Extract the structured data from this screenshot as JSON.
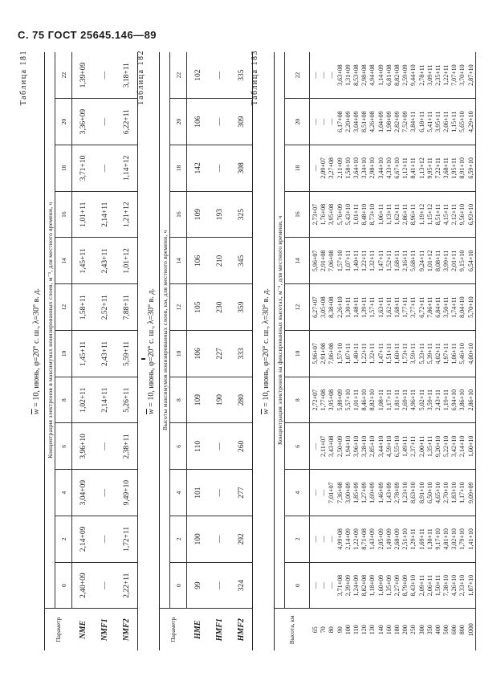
{
  "page_header": "С. 75 ГОСТ 25645.146—89",
  "tables": [
    {
      "label": "Таблица 181",
      "title_var": "w",
      "title": " = 10, июнь, φ=20° с. ш., λ=30° в. д.",
      "first_col_header": "Параметр",
      "subheader": "Концентрация электронов в максимумах ионизированных слоев, м⁻³, для местного времени, ч",
      "hours": [
        "0",
        "2",
        "4",
        "6",
        "8",
        "10",
        "12",
        "14",
        "16",
        "18",
        "20",
        "22"
      ],
      "rows": [
        {
          "label": "NME",
          "values": [
            "2,40+09",
            "2,14+09",
            "3,04+09",
            "3,96+10",
            "1,02+11",
            "1,45+11",
            "1,58+11",
            "1,45+11",
            "1,01+11",
            "3,71+10",
            "3,36+09",
            "1,39+09"
          ]
        },
        {
          "label": "NMF1",
          "values": [
            "—",
            "—",
            "—",
            "—",
            "2,14+11",
            "2,43+11",
            "2,52+11",
            "2,43+11",
            "2,14+11",
            "—",
            "—",
            "—"
          ]
        },
        {
          "label": "NMF2",
          "values": [
            "2,22+11",
            "1,72+11",
            "9,49+10",
            "2,38+11",
            "5,26+11",
            "5,59+11",
            "7,88+11",
            "1,01+12",
            "1,21+12",
            "1,14+12",
            "6,22+11",
            "3,18+11"
          ]
        }
      ]
    },
    {
      "label": "Таблица 182",
      "title_var": "w",
      "title": " = 10, июнь, φ=20° с. ш., λ=30° в. д.",
      "first_col_header": "Параметр",
      "subheader": "Высоты максимумов ионизированных слоев, км, для местного времени, ч",
      "hours": [
        "0",
        "2",
        "4",
        "6",
        "8",
        "10",
        "12",
        "14",
        "16",
        "18",
        "20",
        "22"
      ],
      "rows": [
        {
          "label": "HME",
          "values": [
            "99",
            "100",
            "101",
            "110",
            "109",
            "106",
            "105",
            "106",
            "109",
            "142",
            "106",
            "102"
          ]
        },
        {
          "label": "HMF1",
          "values": [
            "—",
            "—",
            "—",
            "—",
            "190",
            "227",
            "230",
            "210",
            "193",
            "—",
            "—",
            "—"
          ]
        },
        {
          "label": "HMF2",
          "values": [
            "324",
            "292",
            "277",
            "260",
            "280",
            "333",
            "359",
            "345",
            "325",
            "308",
            "309",
            "335"
          ]
        }
      ]
    },
    {
      "label": "Таблица 183",
      "title_var": "w",
      "title": " = 10, июнь, φ=20° с. ш., λ=30° в. д.",
      "first_col_header": "Высота, км",
      "subheader": "Концентрация электронов на фиксированных высотах, м⁻³, для местного времени, ч",
      "hours": [
        "0",
        "2",
        "4",
        "6",
        "8",
        "10",
        "12",
        "14",
        "16",
        "18",
        "20",
        "22"
      ],
      "rows": [
        {
          "label": "65",
          "values": [
            "—",
            "—",
            "—",
            "—",
            "2,72+07",
            "5,96+07",
            "6,27+07",
            "5,96+07",
            "2,73+07",
            "—",
            "—",
            "—"
          ]
        },
        {
          "label": "70",
          "values": [
            "—",
            "—",
            "—",
            "2,11+07",
            "1,77+08",
            "2,91+08",
            "3,05+08",
            "2,91+08",
            "1,76+08",
            "2,09+07",
            "—",
            "—"
          ]
        },
        {
          "label": "80",
          "values": [
            "—",
            "—",
            "7,01+07",
            "3,43+08",
            "3,95+08",
            "7,06+08",
            "8,38+08",
            "7,06+08",
            "3,95+08",
            "3,27+08",
            "—",
            "—"
          ]
        },
        {
          "label": "90",
          "values": [
            "3,71+08",
            "4,99+08",
            "7,36+08",
            "2,50+09",
            "5,89+09",
            "1,57+10",
            "2,26+10",
            "1,57+10",
            "5,76+09",
            "2,11+09",
            "6,17+08",
            "3,63+08"
          ]
        },
        {
          "label": "100",
          "values": [
            "2,39+09",
            "2,14+09",
            "3,00+09",
            "1,94+10",
            "5,57+10",
            "1,07+11",
            "1,30+11",
            "1,07+11",
            "5,43+10",
            "1,58+10",
            "2,20+09",
            "1,31+09"
          ]
        },
        {
          "label": "110",
          "values": [
            "1,24+09",
            "1,22+09",
            "1,85+09",
            "3,96+10",
            "1,01+11",
            "1,40+11",
            "1,48+11",
            "1,40+11",
            "1,01+11",
            "3,64+10",
            "3,04+09",
            "8,53+08"
          ]
        },
        {
          "label": "120",
          "values": [
            "8,82+08",
            "8,71+08",
            "1,27+09",
            "3,28+10",
            "8,46+10",
            "1,22+11",
            "1,39+11",
            "1,22+11",
            "8,48+10",
            "3,34+10",
            "8,51+08",
            "2,98+08"
          ]
        },
        {
          "label": "130",
          "values": [
            "1,18+09",
            "1,43+09",
            "1,69+09",
            "2,85+10",
            "8,82+10",
            "1,32+11",
            "1,57+11",
            "1,32+11",
            "8,73+10",
            "2,98+10",
            "4,26+08",
            "4,94+08"
          ]
        },
        {
          "label": "140",
          "values": [
            "1,60+09",
            "2,05+09",
            "1,46+09",
            "3,44+10",
            "1,08+11",
            "1,47+11",
            "1,63+11",
            "1,47+11",
            "1,06+11",
            "3,44+10",
            "1,04+09",
            "1,14+09"
          ]
        },
        {
          "label": "160",
          "values": [
            "1,35+09",
            "1,49+09",
            "1,43+09",
            "4,59+10",
            "1,17+11",
            "1,51+11",
            "1,62+11",
            "1,52+11",
            "1,13+11",
            "4,33+10",
            "1,98+09",
            "6,81+08"
          ]
        },
        {
          "label": "180",
          "values": [
            "2,27+09",
            "2,68+09",
            "2,78+09",
            "6,55+10",
            "1,81+11",
            "1,60+11",
            "1,68+11",
            "1,68+11",
            "1,62+11",
            "6,67+10",
            "2,82+09",
            "8,82+08"
          ]
        },
        {
          "label": "200",
          "values": [
            "8,79+09",
            "2,51+10",
            "1,23+10",
            "1,49+11",
            "2,69+11",
            "1,73+11",
            "1,77+11",
            "2,16+11",
            "2,86+11",
            "1,12+11",
            "7,52+09",
            "2,59+09"
          ]
        },
        {
          "label": "250",
          "values": [
            "8,43+10",
            "1,29+11",
            "8,63+10",
            "2,37+11",
            "4,96+11",
            "3,59+11",
            "3,77+11",
            "5,68+11",
            "8,96+11",
            "8,41+11",
            "3,84+11",
            "9,44+10"
          ]
        },
        {
          "label": "300",
          "values": [
            "2,09+11",
            "1,69+11",
            "8,91+10",
            "2,00+11",
            "5,02+11",
            "5,33+11",
            "6,72+11",
            "9,24+11",
            "1,19+12",
            "1,13+12",
            "6,18+11",
            "2,78+11"
          ]
        },
        {
          "label": "350",
          "values": [
            "2,06+11",
            "1,30+11",
            "6,50+10",
            "1,35+11",
            "3,59+11",
            "5,39+11",
            "7,86+11",
            "1,01+12",
            "1,15+12",
            "9,95+11",
            "5,41+11",
            "3,09+11"
          ]
        },
        {
          "label": "400",
          "values": [
            "1,50+11",
            "9,17+10",
            "4,65+10",
            "9,20+10",
            "2,43+11",
            "4,02+11",
            "6,84+11",
            "8,08+11",
            "8,51+11",
            "7,22+11",
            "3,95+11",
            "2,35+11"
          ]
        },
        {
          "label": "500",
          "values": [
            "7,38+10",
            "4,81+10",
            "2,70+10",
            "5,22+10",
            "1,19+11",
            "1,97+11",
            "3,50+11",
            "3,99+11",
            "4,15+11",
            "3,68+11",
            "2,06+11",
            "1,22+11"
          ]
        },
        {
          "label": "600",
          "values": [
            "4,26+10",
            "3,02+10",
            "1,83+10",
            "3,42+10",
            "6,94+10",
            "1,06+11",
            "1,74+11",
            "2,01+11",
            "2,12+11",
            "1,95+11",
            "1,15+11",
            "7,07+10"
          ]
        },
        {
          "label": "800",
          "values": [
            "2,33+10",
            "1,79+10",
            "1,17+10",
            "2,14+10",
            "3,86+10",
            "5,46+10",
            "8,04+10",
            "9,15+10",
            "9,56+10",
            "8,91+10",
            "5,65+10",
            "3,70+10"
          ]
        },
        {
          "label": "1000",
          "values": [
            "1,87+10",
            "1,41+10",
            "9,09+09",
            "1,60+10",
            "2,86+10",
            "4,00+10",
            "5,70+10",
            "6,54+10",
            "6,93+10",
            "6,59+10",
            "4,29+10",
            "2,87+10"
          ]
        }
      ]
    }
  ]
}
